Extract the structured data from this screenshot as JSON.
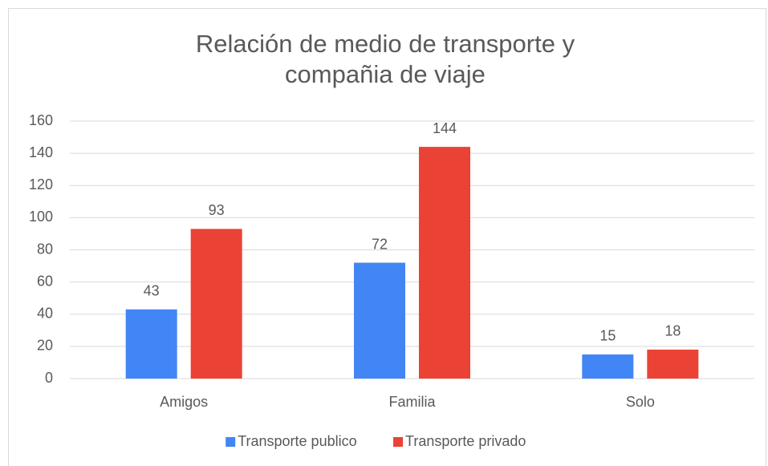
{
  "chart_data": {
    "type": "bar",
    "title": "Relación de medio de transporte y compañia de viaje",
    "categories": [
      "Amigos",
      "Familia",
      "Solo"
    ],
    "series": [
      {
        "name": "Transporte publico",
        "color": "#4285f4",
        "values": [
          43,
          72,
          15
        ]
      },
      {
        "name": "Transporte privado",
        "color": "#ea4335",
        "values": [
          93,
          144,
          18
        ]
      }
    ],
    "ylim": [
      0,
      160
    ],
    "yticks": [
      0,
      20,
      40,
      60,
      80,
      100,
      120,
      140,
      160
    ],
    "grid": true,
    "legend": "bottom"
  }
}
